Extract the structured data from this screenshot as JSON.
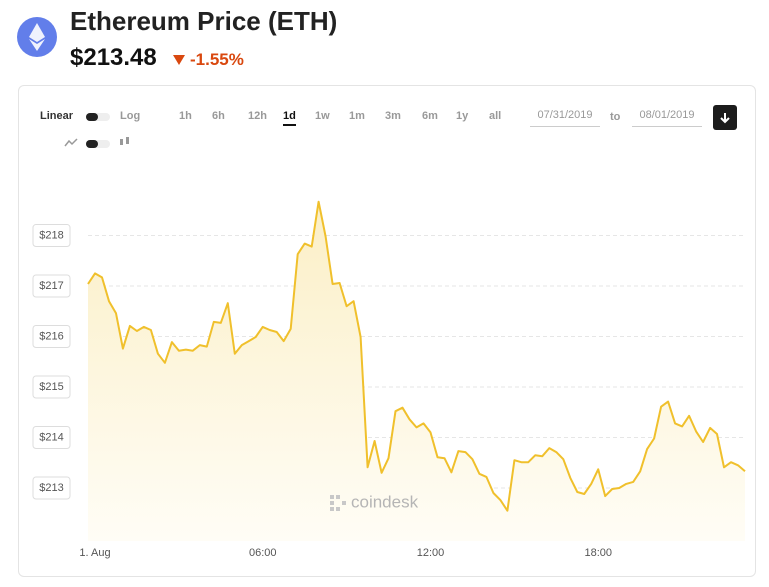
{
  "header": {
    "title": "Ethereum Price (ETH)",
    "price": "$213.48",
    "change": "-1.55%"
  },
  "controls": {
    "scales": [
      "Linear",
      "Log"
    ],
    "ranges": [
      "1h",
      "6h",
      "12h",
      "1d",
      "1w",
      "1m",
      "3m",
      "6m",
      "1y",
      "all"
    ],
    "active_range": "1d",
    "date_from": "07/31/2019",
    "date_sep": "to",
    "date_to": "08/01/2019"
  },
  "watermark": "coindesk",
  "chart_data": {
    "type": "area",
    "color": "#f0c02c",
    "x": [
      -0.25,
      0,
      0.25,
      0.5,
      0.75,
      1,
      1.25,
      1.5,
      1.75,
      2,
      2.25,
      2.5,
      2.75,
      3,
      3.25,
      3.5,
      3.75,
      4,
      4.25,
      4.5,
      4.75,
      5,
      5.25,
      5.5,
      5.75,
      6,
      6.25,
      6.5,
      6.75,
      7,
      7.25,
      7.5,
      7.75,
      8,
      8.25,
      8.5,
      8.75,
      9,
      9.25,
      9.5,
      9.75,
      10,
      10.25,
      10.5,
      10.75,
      11,
      11.25,
      11.5,
      11.75,
      12,
      12.25,
      12.5,
      12.75,
      13,
      13.25,
      13.5,
      13.75,
      14,
      14.25,
      14.5,
      14.75,
      15,
      15.25,
      15.5,
      15.75,
      16,
      16.25,
      16.5,
      16.75,
      17,
      17.25,
      17.5,
      17.75,
      18,
      18.25,
      18.5,
      18.75,
      19,
      19.25,
      19.5,
      19.75,
      20,
      20.25,
      20.5,
      20.75,
      21,
      21.25,
      21.5,
      21.75,
      22,
      22.25,
      22.5,
      22.75,
      23,
      23.25
    ],
    "values": [
      217.04,
      217.25,
      217.17,
      216.7,
      216.46,
      215.76,
      216.21,
      216.11,
      216.19,
      216.13,
      215.66,
      215.48,
      215.89,
      215.72,
      215.74,
      215.72,
      215.83,
      215.8,
      216.29,
      216.27,
      216.66,
      215.66,
      215.83,
      215.91,
      215.99,
      216.19,
      216.13,
      216.09,
      215.91,
      216.15,
      217.63,
      217.84,
      217.78,
      218.67,
      217.98,
      217.04,
      217.06,
      216.6,
      216.7,
      215.99,
      213.41,
      213.93,
      213.3,
      213.59,
      214.52,
      214.59,
      214.36,
      214.2,
      214.28,
      214.1,
      213.61,
      213.59,
      213.31,
      213.73,
      213.71,
      213.57,
      213.28,
      213.22,
      212.9,
      212.76,
      212.55,
      213.55,
      213.51,
      213.51,
      213.65,
      213.63,
      213.79,
      213.71,
      213.57,
      213.2,
      212.92,
      212.88,
      213.08,
      213.37,
      212.84,
      212.98,
      213.0,
      213.08,
      213.12,
      213.33,
      213.77,
      213.98,
      214.61,
      214.71,
      214.28,
      214.22,
      214.43,
      214.12,
      213.91,
      214.19,
      214.07,
      213.41,
      213.51,
      213.45,
      213.33
    ],
    "xlim": [
      -0.25,
      23.25
    ],
    "xticks": [
      {
        "value": 0,
        "label": "1. Aug"
      },
      {
        "value": 6,
        "label": "06:00"
      },
      {
        "value": 12,
        "label": "12:00"
      },
      {
        "value": 18,
        "label": "18:00"
      }
    ],
    "ylim": [
      211.95,
      219.1
    ],
    "yticks": [
      {
        "value": 213,
        "label": "$213"
      },
      {
        "value": 214,
        "label": "$214"
      },
      {
        "value": 215,
        "label": "$215"
      },
      {
        "value": 216,
        "label": "$216"
      },
      {
        "value": 217,
        "label": "$217"
      },
      {
        "value": 218,
        "label": "$218"
      }
    ],
    "grid": true
  }
}
